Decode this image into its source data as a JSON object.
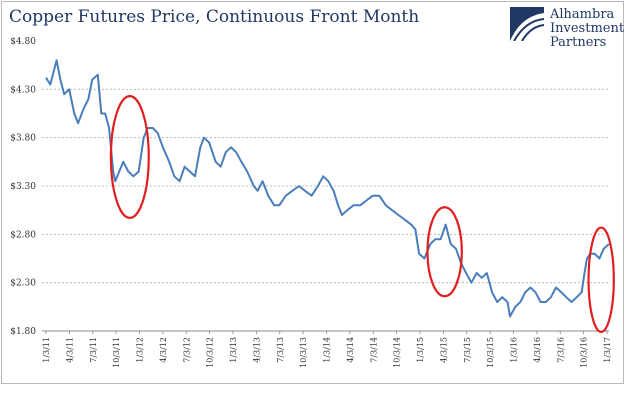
{
  "chart_data": {
    "type": "line",
    "title": "Copper Futures Price, Continuous Front Month",
    "xlabel": "",
    "ylabel": "",
    "ylim": [
      1.8,
      4.8
    ],
    "y_ticks": [
      "$4.80",
      "$4.30",
      "$3.80",
      "$3.30",
      "$2.80",
      "$2.30",
      "$1.80"
    ],
    "x_ticks": [
      "1/3/11",
      "4/3/11",
      "7/3/11",
      "10/3/11",
      "1/3/12",
      "4/3/12",
      "7/3/12",
      "10/3/12",
      "1/3/13",
      "4/3/13",
      "7/3/13",
      "10/3/13",
      "1/3/14",
      "4/3/14",
      "7/3/14",
      "10/3/14",
      "1/3/15",
      "4/3/15",
      "7/3/15",
      "10/3/15",
      "1/3/16",
      "4/3/16",
      "7/3/16",
      "10/3/16",
      "1/3/17"
    ],
    "grid": "horizontal-dashed",
    "line_color": "#4a7ebb",
    "highlight_color": "#e02020",
    "series": [
      {
        "x": [
          "2011-01-03",
          "2011-01-20",
          "2011-02-14",
          "2011-03-01",
          "2011-03-16",
          "2011-04-05",
          "2011-04-25",
          "2011-05-10",
          "2011-06-01",
          "2011-06-20",
          "2011-07-05",
          "2011-07-27",
          "2011-08-10",
          "2011-08-25",
          "2011-09-10",
          "2011-09-26",
          "2011-10-04",
          "2011-10-20",
          "2011-11-05",
          "2011-11-25",
          "2011-12-15",
          "2012-01-05",
          "2012-01-25",
          "2012-02-10",
          "2012-03-01",
          "2012-03-20",
          "2012-04-10",
          "2012-05-05",
          "2012-05-25",
          "2012-06-15",
          "2012-07-05",
          "2012-07-25",
          "2012-08-15",
          "2012-09-05",
          "2012-09-20",
          "2012-10-10",
          "2012-11-05",
          "2012-11-25",
          "2012-12-15",
          "2013-01-05",
          "2013-01-25",
          "2013-02-15",
          "2013-03-10",
          "2013-04-05",
          "2013-04-20",
          "2013-05-10",
          "2013-06-01",
          "2013-06-25",
          "2013-07-15",
          "2013-08-10",
          "2013-09-05",
          "2013-10-01",
          "2013-10-25",
          "2013-11-20",
          "2013-12-15",
          "2014-01-05",
          "2014-01-25",
          "2014-02-15",
          "2014-03-05",
          "2014-03-20",
          "2014-04-10",
          "2014-05-05",
          "2014-06-01",
          "2014-06-25",
          "2014-07-20",
          "2014-08-15",
          "2014-09-10",
          "2014-10-05",
          "2014-10-30",
          "2014-11-25",
          "2014-12-20",
          "2015-01-05",
          "2015-01-20",
          "2015-02-10",
          "2015-03-05",
          "2015-03-25",
          "2015-04-15",
          "2015-05-05",
          "2015-05-25",
          "2015-06-15",
          "2015-07-05",
          "2015-07-25",
          "2015-08-15",
          "2015-09-05",
          "2015-09-25",
          "2015-10-15",
          "2015-11-05",
          "2015-11-25",
          "2015-12-15",
          "2016-01-05",
          "2016-01-15",
          "2016-02-05",
          "2016-02-25",
          "2016-03-15",
          "2016-04-05",
          "2016-04-25",
          "2016-05-15",
          "2016-06-05",
          "2016-06-25",
          "2016-07-15",
          "2016-08-05",
          "2016-08-25",
          "2016-09-15",
          "2016-10-05",
          "2016-10-25",
          "2016-11-05",
          "2016-11-15",
          "2016-11-28",
          "2016-12-15",
          "2017-01-03",
          "2017-01-20",
          "2017-02-10"
        ],
        "values": [
          4.42,
          4.35,
          4.6,
          4.4,
          4.25,
          4.3,
          4.05,
          3.95,
          4.1,
          4.2,
          4.4,
          4.45,
          4.05,
          4.05,
          3.9,
          3.45,
          3.35,
          3.45,
          3.55,
          3.45,
          3.4,
          3.45,
          3.8,
          3.9,
          3.9,
          3.85,
          3.7,
          3.55,
          3.4,
          3.35,
          3.5,
          3.45,
          3.4,
          3.7,
          3.8,
          3.75,
          3.55,
          3.5,
          3.65,
          3.7,
          3.65,
          3.55,
          3.45,
          3.3,
          3.25,
          3.35,
          3.2,
          3.1,
          3.1,
          3.2,
          3.25,
          3.3,
          3.25,
          3.2,
          3.3,
          3.4,
          3.35,
          3.25,
          3.1,
          3.0,
          3.05,
          3.1,
          3.1,
          3.15,
          3.2,
          3.2,
          3.1,
          3.05,
          3.0,
          2.95,
          2.9,
          2.85,
          2.6,
          2.55,
          2.7,
          2.75,
          2.75,
          2.9,
          2.7,
          2.65,
          2.5,
          2.4,
          2.3,
          2.4,
          2.35,
          2.4,
          2.2,
          2.1,
          2.15,
          2.1,
          1.95,
          2.05,
          2.1,
          2.2,
          2.25,
          2.2,
          2.1,
          2.1,
          2.15,
          2.25,
          2.2,
          2.15,
          2.1,
          2.15,
          2.2,
          2.4,
          2.55,
          2.6,
          2.6,
          2.55,
          2.65,
          2.7
        ]
      }
    ],
    "highlights": [
      {
        "center_x": "2011-12-01",
        "center_y": 3.6,
        "rx_days": 75,
        "ry": 0.63
      },
      {
        "center_x": "2015-05-01",
        "center_y": 2.62,
        "rx_days": 68,
        "ry": 0.46
      },
      {
        "center_x": "2017-01-10",
        "center_y": 2.33,
        "rx_days": 50,
        "ry": 0.54
      }
    ]
  },
  "logo": {
    "line1": "Alhambra",
    "line2": "Investment",
    "line3": "Partners"
  }
}
